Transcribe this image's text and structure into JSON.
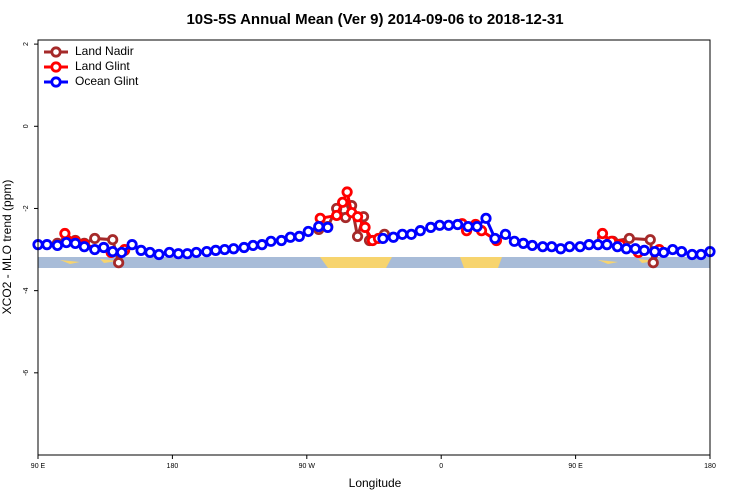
{
  "chart_data": {
    "type": "line",
    "title": "10S-5S Annual Mean (Ver 9)   2014-09-06 to 2018-12-31",
    "x_label": "Longitude",
    "y_label": "XCO2 - MLO trend (ppm)",
    "xlim": [
      90,
      540
    ],
    "ylim": [
      -8,
      2.1
    ],
    "xticks": [
      {
        "value": 90,
        "label": "90 E"
      },
      180,
      {
        "value": 270,
        "label": "90 W"
      },
      {
        "value": 360,
        "label": "0"
      },
      {
        "value": 450,
        "label": "90 E"
      },
      {
        "value": 540,
        "label": "180"
      }
    ],
    "yticks": [
      -6,
      -4,
      -2,
      0,
      2
    ],
    "legend": "upper-left",
    "series": [
      {
        "name": "Land Nadir",
        "color": "#a52a2a",
        "x": [
          103,
          109,
          115,
          121,
          128,
          140,
          144,
          148,
          200,
          278,
          284,
          290,
          296,
          300,
          304,
          308,
          312,
          322,
          400,
          468,
          475,
          486,
          500,
          502,
          506
        ],
        "values": [
          -2.85,
          -2.78,
          -2.78,
          -2.85,
          -2.73,
          -2.76,
          -3.32,
          -3.02,
          null,
          -2.51,
          -2.44,
          -2.0,
          -2.22,
          -1.93,
          -2.68,
          -2.2,
          -2.78,
          -2.63,
          null,
          -2.73,
          -2.8,
          -2.73,
          -2.76,
          -3.32,
          -3.02
        ]
      },
      {
        "name": "Land Glint",
        "color": "#ff0000",
        "x": [
          108,
          115,
          121,
          139,
          148,
          200,
          279,
          290,
          294,
          297,
          300,
          304,
          309,
          314,
          318,
          340,
          374,
          377,
          383,
          387,
          397,
          430,
          468,
          474,
          480,
          492,
          506
        ],
        "values": [
          -2.61,
          -2.8,
          -2.88,
          -3.07,
          -3.0,
          null,
          -2.24,
          -2.17,
          -1.85,
          -1.6,
          -2.1,
          -2.2,
          -2.46,
          -2.78,
          -2.73,
          null,
          -2.37,
          -2.54,
          -2.39,
          -2.54,
          -2.78,
          null,
          -2.61,
          -2.8,
          -2.88,
          -3.07,
          -3.0
        ]
      },
      {
        "name": "Ocean Glint",
        "color": "#0000ff",
        "x": [
          90,
          96,
          103,
          109,
          115,
          121,
          128,
          134,
          140,
          146,
          153,
          159,
          165,
          171,
          178,
          184,
          190,
          196,
          203,
          209,
          215,
          221,
          228,
          234,
          240,
          246,
          253,
          259,
          265,
          271,
          278,
          284,
          290,
          296,
          303,
          309,
          315,
          321,
          328,
          334,
          340,
          346,
          353,
          359,
          365,
          371,
          378,
          384,
          390,
          396,
          403,
          409,
          415,
          421,
          428,
          434,
          440,
          446,
          453,
          459,
          465,
          471,
          478,
          484,
          490,
          496,
          503,
          509,
          515,
          521,
          528,
          534,
          540
        ],
        "values": [
          -2.88,
          -2.88,
          -2.9,
          -2.83,
          -2.85,
          -2.93,
          -3.0,
          -2.95,
          -3.05,
          -3.07,
          -2.88,
          -3.02,
          -3.07,
          -3.12,
          -3.07,
          -3.1,
          -3.1,
          -3.07,
          -3.05,
          -3.02,
          -3.0,
          -2.98,
          -2.95,
          -2.9,
          -2.88,
          -2.8,
          -2.78,
          -2.7,
          -2.68,
          -2.56,
          -2.44,
          -2.46,
          null,
          null,
          null,
          null,
          null,
          -2.73,
          -2.7,
          -2.63,
          -2.63,
          -2.54,
          -2.46,
          -2.41,
          -2.41,
          -2.39,
          -2.44,
          -2.44,
          -2.24,
          -2.73,
          -2.63,
          -2.8,
          -2.85,
          -2.9,
          -2.93,
          -2.93,
          -2.98,
          -2.93,
          -2.93,
          -2.88,
          -2.88,
          -2.88,
          -2.93,
          -2.98,
          -2.98,
          -3.02,
          -3.05,
          -3.07,
          -3.0,
          -3.05,
          -3.12,
          -3.12,
          -3.05
        ]
      }
    ]
  }
}
